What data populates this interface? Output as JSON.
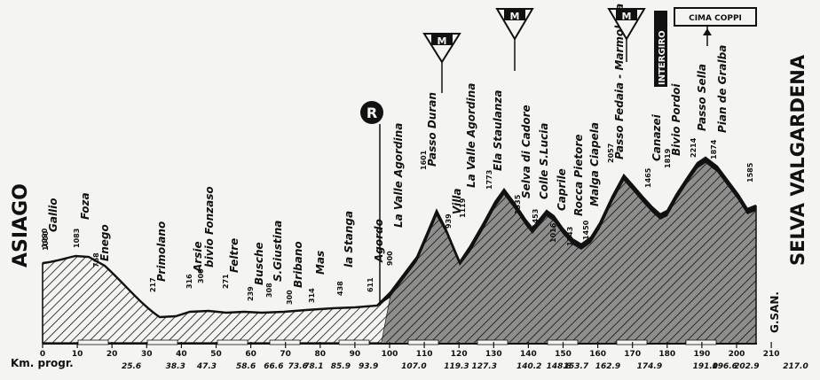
{
  "start_town": "ASIAGO",
  "finish_town": "SELVA VALGARDENA",
  "axis_label": "Km. progr.",
  "signature": "G.SAN.",
  "cima_coppi": "CIMA COPPI",
  "intergiro": "INTERGIRO",
  "refuel_symbol": "R",
  "mountain_symbol": "M",
  "ticks": [
    "0",
    "10",
    "20",
    "30",
    "40",
    "50",
    "60",
    "70",
    "80",
    "90",
    "100",
    "110",
    "120",
    "130",
    "140",
    "150",
    "160",
    "170",
    "180",
    "190",
    "200",
    "210"
  ],
  "km_points": [
    "25.6",
    "38.3",
    "47.3",
    "58.6",
    "66.6",
    "73.6",
    "78.1",
    "85.9",
    "93.9",
    "107.0",
    "119.3",
    "127.3",
    "140.2",
    "148.8",
    "153.7",
    "162.9",
    "174.9",
    "191.0",
    "196.6",
    "202.9",
    "217.0"
  ],
  "places": [
    {
      "name": "Gallio",
      "alt": "1090"
    },
    {
      "name": "Foza",
      "alt": "1083"
    },
    {
      "name": "Enego",
      "alt": "768"
    },
    {
      "name": "Primolano",
      "alt": "217"
    },
    {
      "name": "Arsie",
      "alt": "316"
    },
    {
      "name": "bivio Fonzaso",
      "alt": "300"
    },
    {
      "name": "Feltre",
      "alt": "271"
    },
    {
      "name": "Busche",
      "alt": "239"
    },
    {
      "name": "S.Giustina",
      "alt": "308"
    },
    {
      "name": "Bribano",
      "alt": "300"
    },
    {
      "name": "Mas",
      "alt": "314"
    },
    {
      "name": "la Stanga",
      "alt": "438"
    },
    {
      "name": "Agordo",
      "alt": "611"
    },
    {
      "name": "La Valle Agordina",
      "alt": "900"
    },
    {
      "name": "Passo Duran",
      "alt": "1601"
    },
    {
      "name": "Villa",
      "alt": "939"
    },
    {
      "name": "La Valle Agordina",
      "alt": "1119"
    },
    {
      "name": "Ela Staulanza",
      "alt": "1773"
    },
    {
      "name": "Selva di Cadore",
      "alt": "1335"
    },
    {
      "name": "Colle S.Lucia",
      "alt": "1453"
    },
    {
      "name": "Caprile",
      "alt": "1016"
    },
    {
      "name": "Rocca Pietore",
      "alt": "1143"
    },
    {
      "name": "Malga Ciapela",
      "alt": "1450"
    },
    {
      "name": "Passo Fedaia - Marmolada",
      "alt": "2057"
    },
    {
      "name": "Canazei",
      "alt": "1465"
    },
    {
      "name": "Bivio Pordoi",
      "alt": "1819"
    },
    {
      "name": "Passo Sella",
      "alt": "2214"
    },
    {
      "name": "Pian de Gralba",
      "alt": "1874"
    },
    {
      "name": "",
      "alt": "1585"
    }
  ],
  "start_alt": "1000",
  "colors": {
    "ink": "#111111",
    "paper": "#f4f4f2"
  }
}
